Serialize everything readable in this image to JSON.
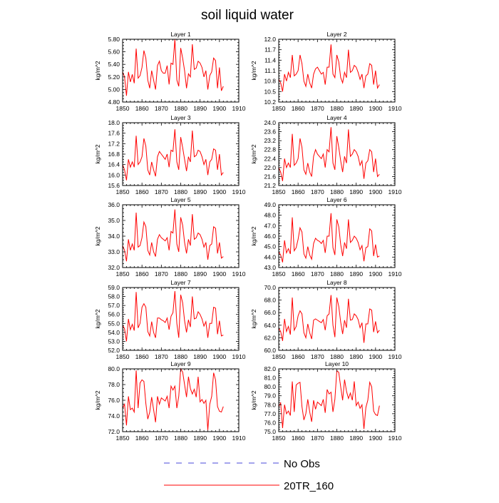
{
  "title": "soil liquid water",
  "colors": {
    "model": "#ff0000",
    "obs": "#4a4ad8",
    "axis": "#000000"
  },
  "legend": {
    "obs_label": "No Obs",
    "model_label": "20TR_160"
  },
  "chart_data": [
    {
      "type": "line",
      "title": "Layer 1",
      "xlabel": "",
      "ylabel": "kg/m^2",
      "xlim": [
        1850,
        1910
      ],
      "ylim": [
        4.8,
        5.8
      ],
      "xticks": [
        "1850",
        "1860",
        "1870",
        "1880",
        "1890",
        "1900",
        "1910"
      ],
      "yticks": [
        "4.80",
        "5.00",
        "5.20",
        "5.40",
        "5.60",
        "5.80"
      ],
      "x_start": 1850,
      "series": [
        {
          "name": "20TR_160",
          "values": [
            5.28,
            5.2,
            4.9,
            5.28,
            5.12,
            5.24,
            5.1,
            5.65,
            5.18,
            5.22,
            5.35,
            5.62,
            5.5,
            5.15,
            5.02,
            5.3,
            5.15,
            5.0,
            5.38,
            5.45,
            5.3,
            5.26,
            5.26,
            5.38,
            5.08,
            5.42,
            5.4,
            5.8,
            5.15,
            5.05,
            5.66,
            5.5,
            5.3,
            5.02,
            5.25,
            5.2,
            5.72,
            5.32,
            5.34,
            5.45,
            5.42,
            5.35,
            5.2,
            5.3,
            5.0,
            5.22,
            5.28,
            5.5,
            5.46,
            5.02,
            5.35,
            4.98,
            5.05
          ]
        }
      ]
    },
    {
      "type": "line",
      "title": "Layer 2",
      "xlabel": "",
      "ylabel": "kg/m^2",
      "xlim": [
        1850,
        1910
      ],
      "ylim": [
        10.2,
        12.0
      ],
      "xticks": [
        "1850",
        "1860",
        "1870",
        "1880",
        "1890",
        "1900",
        "1910"
      ],
      "yticks": [
        "10.2",
        "10.5",
        "10.8",
        "11.1",
        "11.4",
        "11.7",
        "12.0"
      ],
      "x_start": 1850,
      "series": [
        {
          "name": "20TR_160",
          "values": [
            10.85,
            10.75,
            10.5,
            11.0,
            10.8,
            11.05,
            10.9,
            11.55,
            10.95,
            11.0,
            11.1,
            11.55,
            11.3,
            10.8,
            10.65,
            11.0,
            10.75,
            10.6,
            11.0,
            11.15,
            11.2,
            11.1,
            11.0,
            11.05,
            10.7,
            11.2,
            11.2,
            11.85,
            11.0,
            10.9,
            11.55,
            11.35,
            10.9,
            10.75,
            11.05,
            10.9,
            11.7,
            11.05,
            11.1,
            11.25,
            11.2,
            11.05,
            10.85,
            11.0,
            10.6,
            10.95,
            11.0,
            11.3,
            11.25,
            10.7,
            11.1,
            10.6,
            10.7
          ]
        }
      ]
    },
    {
      "type": "line",
      "title": "Layer 3",
      "xlabel": "",
      "ylabel": "kg/m^2",
      "xlim": [
        1850,
        1910
      ],
      "ylim": [
        15.6,
        18.0
      ],
      "xticks": [
        "1850",
        "1860",
        "1870",
        "1880",
        "1890",
        "1900",
        "1910"
      ],
      "yticks": [
        "15.6",
        "16.0",
        "16.4",
        "16.8",
        "17.2",
        "17.6",
        "18.0"
      ],
      "x_start": 1850,
      "series": [
        {
          "name": "20TR_160",
          "values": [
            16.4,
            16.2,
            15.8,
            16.6,
            16.3,
            16.5,
            16.3,
            17.5,
            16.4,
            16.5,
            16.7,
            17.4,
            17.1,
            16.2,
            16.0,
            16.5,
            16.2,
            15.95,
            16.7,
            16.9,
            16.8,
            16.7,
            16.6,
            16.8,
            16.3,
            16.95,
            16.9,
            17.75,
            16.5,
            16.2,
            17.45,
            17.05,
            16.6,
            16.15,
            16.7,
            16.5,
            17.7,
            16.7,
            16.75,
            16.95,
            16.9,
            16.7,
            16.4,
            16.6,
            16.0,
            16.5,
            16.6,
            17.0,
            16.95,
            16.2,
            16.8,
            16.0,
            16.1
          ]
        }
      ]
    },
    {
      "type": "line",
      "title": "Layer 4",
      "xlabel": "",
      "ylabel": "kg/m^2",
      "xlim": [
        1850,
        1910
      ],
      "ylim": [
        21.2,
        24.0
      ],
      "xticks": [
        "1850",
        "1860",
        "1870",
        "1880",
        "1890",
        "1900",
        "1910"
      ],
      "yticks": [
        "21.2",
        "21.6",
        "22.0",
        "22.4",
        "22.8",
        "23.2",
        "23.6",
        "24.0"
      ],
      "x_start": 1850,
      "series": [
        {
          "name": "20TR_160",
          "values": [
            22.0,
            21.8,
            21.4,
            22.4,
            22.0,
            22.2,
            22.0,
            23.5,
            22.1,
            22.2,
            22.4,
            23.3,
            22.9,
            21.9,
            21.7,
            22.2,
            21.8,
            21.6,
            22.5,
            22.8,
            22.6,
            22.5,
            22.4,
            22.6,
            22.0,
            22.8,
            22.7,
            23.8,
            22.2,
            21.9,
            23.4,
            22.9,
            22.3,
            21.8,
            22.5,
            22.2,
            23.7,
            22.5,
            22.6,
            22.8,
            22.7,
            22.5,
            22.1,
            22.3,
            21.5,
            22.2,
            22.3,
            22.8,
            22.7,
            21.8,
            22.4,
            21.6,
            21.7
          ]
        }
      ]
    },
    {
      "type": "line",
      "title": "Layer 5",
      "xlabel": "",
      "ylabel": "kg/m^2",
      "xlim": [
        1850,
        1910
      ],
      "ylim": [
        32.0,
        36.0
      ],
      "xticks": [
        "1850",
        "1860",
        "1870",
        "1880",
        "1890",
        "1900",
        "1910"
      ],
      "yticks": [
        "32.0",
        "33.0",
        "34.0",
        "35.0",
        "36.0"
      ],
      "x_start": 1850,
      "series": [
        {
          "name": "20TR_160",
          "values": [
            33.4,
            33.1,
            32.4,
            33.8,
            33.1,
            33.5,
            33.1,
            35.5,
            33.3,
            33.4,
            33.9,
            34.9,
            34.6,
            33.1,
            32.8,
            33.6,
            33.0,
            32.7,
            33.8,
            34.1,
            33.9,
            33.8,
            33.7,
            33.9,
            33.1,
            34.3,
            34.2,
            35.7,
            33.5,
            33.0,
            35.2,
            34.7,
            33.6,
            32.9,
            33.8,
            33.4,
            35.4,
            33.8,
            33.9,
            34.2,
            34.1,
            33.8,
            33.3,
            33.6,
            32.5,
            33.4,
            33.5,
            34.6,
            34.5,
            32.9,
            33.6,
            32.6,
            32.7
          ]
        }
      ]
    },
    {
      "type": "line",
      "title": "Layer 6",
      "xlabel": "",
      "ylabel": "kg/m^2",
      "xlim": [
        1850,
        1910
      ],
      "ylim": [
        43.0,
        49.0
      ],
      "xticks": [
        "1850",
        "1860",
        "1870",
        "1880",
        "1890",
        "1900",
        "1910"
      ],
      "yticks": [
        "43.0",
        "44.0",
        "45.0",
        "46.0",
        "47.0",
        "48.0",
        "49.0"
      ],
      "x_start": 1850,
      "series": [
        {
          "name": "20TR_160",
          "values": [
            44.5,
            44.2,
            43.5,
            45.6,
            44.4,
            44.8,
            44.3,
            47.8,
            44.6,
            44.9,
            45.7,
            46.8,
            46.4,
            44.3,
            43.9,
            45.0,
            44.2,
            43.8,
            45.3,
            45.8,
            45.6,
            45.5,
            45.3,
            45.6,
            44.4,
            46.0,
            46.0,
            48.2,
            44.9,
            44.2,
            47.6,
            46.9,
            45.2,
            44.1,
            45.4,
            44.8,
            47.6,
            45.4,
            45.6,
            46.0,
            45.8,
            45.4,
            44.7,
            45.1,
            43.6,
            44.9,
            45.0,
            46.7,
            46.5,
            44.1,
            45.2,
            44.0,
            44.1
          ]
        }
      ]
    },
    {
      "type": "line",
      "title": "Layer 7",
      "xlabel": "",
      "ylabel": "kg/m^2",
      "xlim": [
        1850,
        1910
      ],
      "ylim": [
        52.0,
        59.0
      ],
      "xticks": [
        "1850",
        "1860",
        "1870",
        "1880",
        "1890",
        "1900",
        "1910"
      ],
      "yticks": [
        "52.0",
        "53.0",
        "54.0",
        "55.0",
        "56.0",
        "57.0",
        "58.0",
        "59.0"
      ],
      "x_start": 1850,
      "series": [
        {
          "name": "20TR_160",
          "values": [
            54.8,
            54.4,
            53.0,
            55.5,
            54.3,
            54.9,
            54.2,
            58.5,
            54.5,
            55.0,
            56.8,
            57.2,
            56.8,
            54.1,
            53.6,
            55.2,
            54.0,
            53.4,
            55.6,
            55.6,
            55.4,
            55.3,
            55.1,
            55.6,
            54.3,
            55.8,
            56.2,
            58.6,
            55.0,
            53.4,
            58.2,
            57.3,
            55.3,
            54.0,
            55.4,
            54.6,
            58.0,
            55.5,
            55.6,
            56.3,
            56.0,
            55.5,
            54.7,
            55.2,
            53.4,
            55.0,
            55.0,
            56.8,
            56.7,
            53.8,
            55.3,
            53.6,
            53.7
          ]
        }
      ]
    },
    {
      "type": "line",
      "title": "Layer 8",
      "xlabel": "",
      "ylabel": "kg/m^2",
      "xlim": [
        1850,
        1910
      ],
      "ylim": [
        60.0,
        70.0
      ],
      "xticks": [
        "1850",
        "1860",
        "1870",
        "1880",
        "1890",
        "1900",
        "1910"
      ],
      "yticks": [
        "60.0",
        "62.0",
        "64.0",
        "66.0",
        "68.0",
        "70.0"
      ],
      "x_start": 1850,
      "series": [
        {
          "name": "20TR_160",
          "values": [
            63.5,
            63.0,
            61.5,
            65.0,
            63.0,
            63.8,
            62.5,
            68.4,
            63.2,
            63.8,
            65.5,
            66.3,
            65.8,
            62.8,
            62.0,
            64.2,
            62.8,
            61.8,
            64.8,
            65.0,
            64.8,
            64.6,
            64.4,
            64.9,
            63.2,
            65.5,
            65.8,
            68.8,
            64.0,
            62.1,
            68.4,
            67.0,
            64.5,
            62.6,
            64.8,
            63.6,
            68.2,
            64.8,
            64.9,
            65.8,
            65.5,
            64.9,
            63.6,
            64.4,
            61.2,
            64.2,
            64.2,
            66.6,
            66.4,
            62.9,
            64.6,
            62.8,
            63.2
          ]
        }
      ]
    },
    {
      "type": "line",
      "title": "Layer 9",
      "xlabel": "",
      "ylabel": "kg/m^2",
      "xlim": [
        1850,
        1910
      ],
      "ylim": [
        72.0,
        80.0
      ],
      "xticks": [
        "1850",
        "1860",
        "1870",
        "1880",
        "1890",
        "1900",
        "1910"
      ],
      "yticks": [
        "72.0",
        "74.0",
        "76.0",
        "78.0",
        "80.0"
      ],
      "x_start": 1850,
      "series": [
        {
          "name": "20TR_160",
          "values": [
            75.0,
            75.5,
            72.8,
            76.5,
            74.8,
            75.0,
            74.5,
            79.8,
            75.0,
            78.2,
            78.6,
            78.4,
            75.6,
            73.6,
            74.5,
            76.4,
            74.8,
            73.2,
            76.5,
            75.5,
            76.3,
            76.1,
            75.9,
            76.5,
            75.0,
            77.8,
            77.3,
            77.8,
            75.0,
            76.5,
            80.0,
            79.6,
            78.0,
            76.4,
            79.0,
            77.5,
            76.8,
            77.4,
            76.4,
            79.0,
            75.8,
            76.1,
            75.6,
            76.0,
            72.2,
            75.5,
            76.5,
            79.5,
            78.6,
            75.2,
            74.6,
            74.5,
            75.2
          ]
        }
      ]
    },
    {
      "type": "line",
      "title": "Layer 10",
      "xlabel": "",
      "ylabel": "kg/m^2",
      "xlim": [
        1850,
        1910
      ],
      "ylim": [
        75.0,
        82.0
      ],
      "xticks": [
        "1850",
        "1860",
        "1870",
        "1880",
        "1890",
        "1900",
        "1910"
      ],
      "yticks": [
        "75.0",
        "76.0",
        "77.0",
        "78.0",
        "79.0",
        "80.0",
        "81.0",
        "82.0"
      ],
      "x_start": 1850,
      "series": [
        {
          "name": "20TR_160",
          "values": [
            77.8,
            78.2,
            75.4,
            78.0,
            77.0,
            77.3,
            76.8,
            80.6,
            77.2,
            80.2,
            80.4,
            80.5,
            77.8,
            76.3,
            77.0,
            78.6,
            77.2,
            76.1,
            78.5,
            77.5,
            78.3,
            78.1,
            77.9,
            78.6,
            77.1,
            79.7,
            79.2,
            79.4,
            77.2,
            78.6,
            81.8,
            81.6,
            80.0,
            78.5,
            80.8,
            79.5,
            78.7,
            79.3,
            78.5,
            80.6,
            77.9,
            78.3,
            77.6,
            78.0,
            75.3,
            77.7,
            78.5,
            80.5,
            80.0,
            77.3,
            76.9,
            76.8,
            77.9
          ]
        }
      ]
    }
  ]
}
